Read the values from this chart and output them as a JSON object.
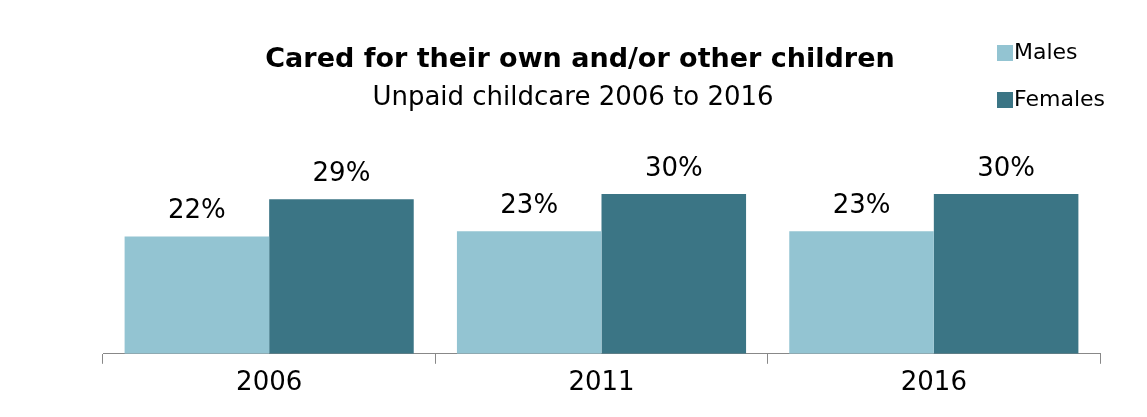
{
  "chart_data": {
    "type": "bar",
    "title": "Cared for their own and/or other children",
    "subtitle": "Unpaid childcare 2006 to 2016",
    "categories": [
      "2006",
      "2011",
      "2016"
    ],
    "series": [
      {
        "name": "Males",
        "color": "#93c4d2",
        "values": [
          22,
          23,
          23
        ],
        "value_labels": [
          "22%",
          "23%",
          "23%"
        ]
      },
      {
        "name": "Females",
        "color": "#3b7585",
        "values": [
          29,
          30,
          30
        ],
        "value_labels": [
          "29%",
          "30%",
          "30%"
        ]
      }
    ],
    "legend": "top right"
  }
}
